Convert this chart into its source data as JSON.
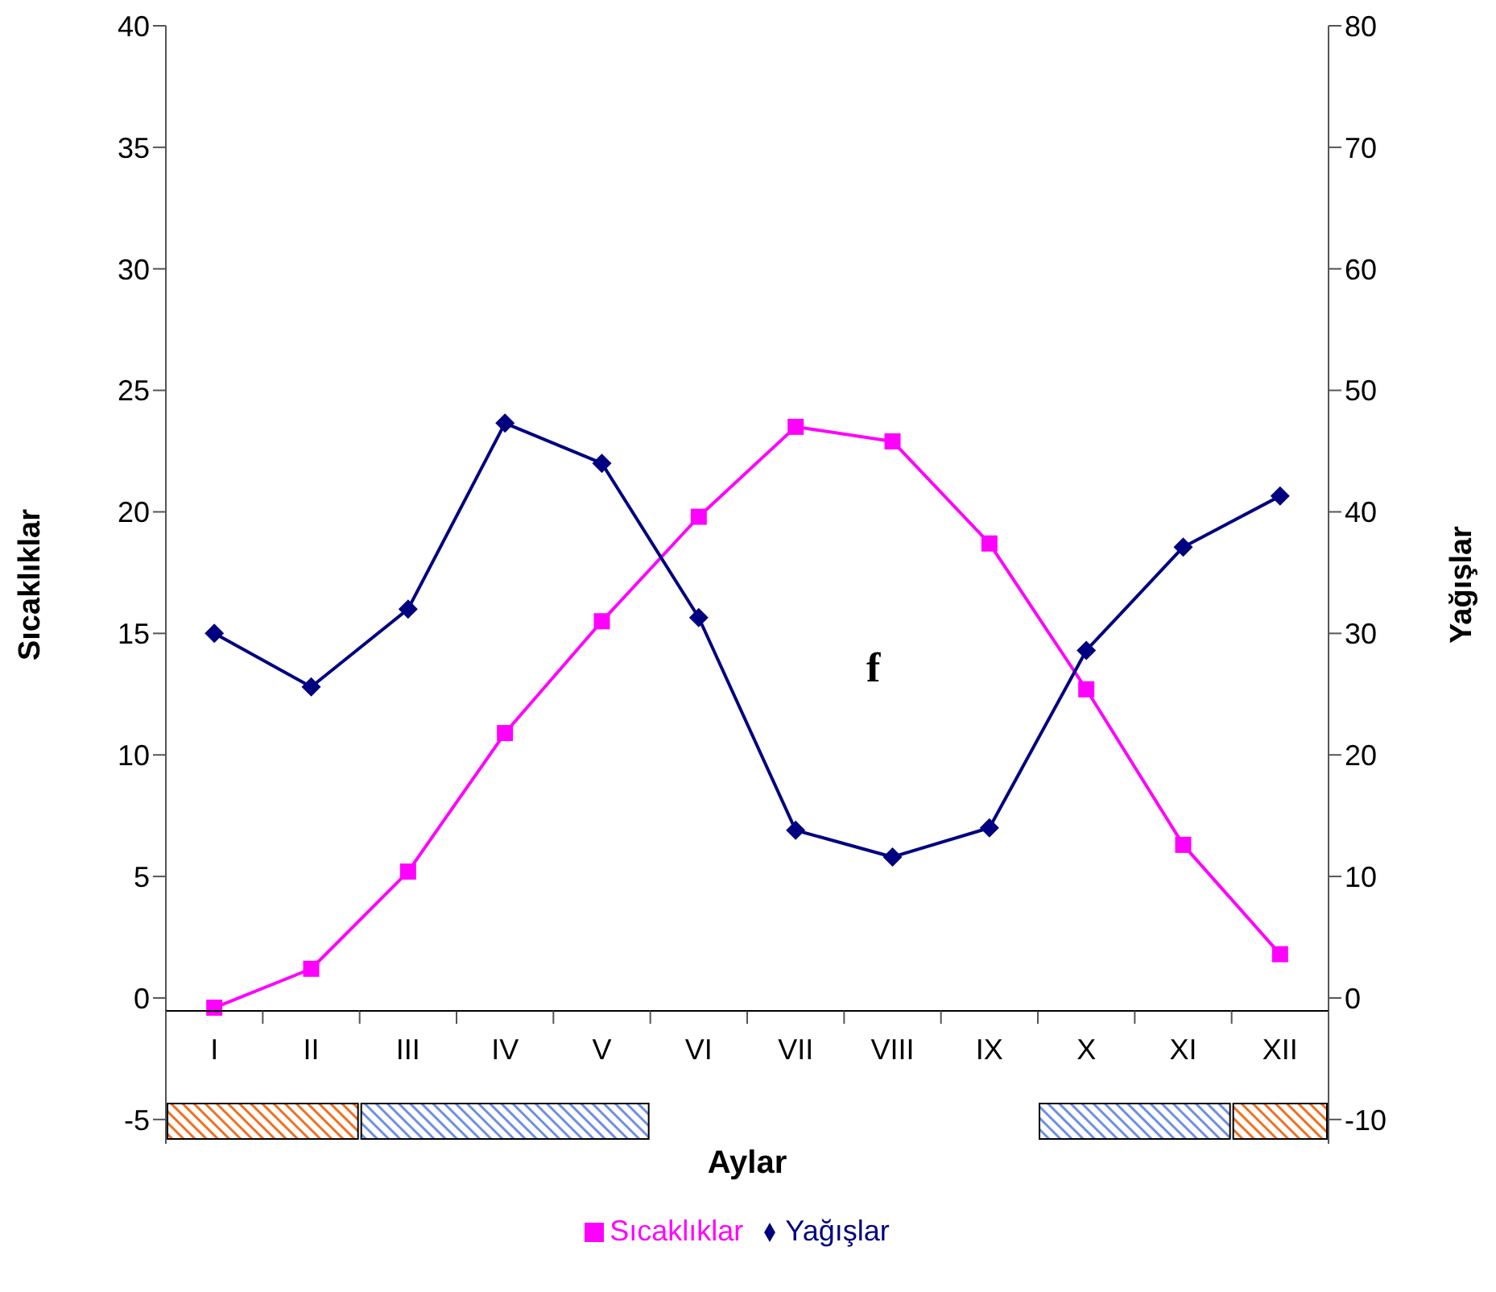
{
  "chart_data": {
    "type": "line",
    "xlabel": "Aylar",
    "ylabel": "Sıcaklıklar",
    "y2label": "Yağışlar",
    "categories": [
      "I",
      "II",
      "III",
      "IV",
      "V",
      "VI",
      "VII",
      "VIII",
      "IX",
      "X",
      "XI",
      "XII"
    ],
    "series": [
      {
        "name": "Sıcaklıklar",
        "color": "#ff00ff",
        "marker": "square",
        "values": [
          -0.4,
          1.2,
          5.2,
          10.9,
          15.5,
          19.8,
          23.5,
          22.9,
          18.7,
          12.7,
          6.3,
          1.8
        ]
      },
      {
        "name": "Yağışlar",
        "color": "#000080",
        "marker": "diamond",
        "axis": "y2",
        "values": [
          30,
          25.6,
          32,
          47.3,
          44,
          31.3,
          13.8,
          11.6,
          14,
          28.6,
          37.1,
          41.3
        ]
      }
    ],
    "ylim": [
      -6,
      40
    ],
    "yticks": [
      -5,
      0,
      5,
      10,
      15,
      20,
      25,
      30,
      35,
      40
    ],
    "y2lim": [
      -12,
      80
    ],
    "y2ticks": [
      -10,
      0,
      10,
      20,
      30,
      40,
      50,
      60,
      70,
      80
    ],
    "annotations": [
      "f"
    ],
    "legend": "bottom",
    "line_style": "solid"
  }
}
